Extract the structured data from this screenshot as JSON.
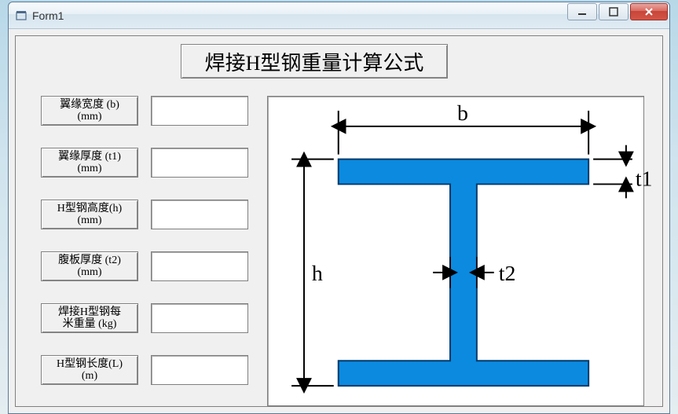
{
  "window": {
    "title": "Form1"
  },
  "page": {
    "title": "焊接H型钢重量计算公式"
  },
  "fields": [
    {
      "label_line1": "翼缘宽度 (b)",
      "label_line2": "(mm)",
      "value": ""
    },
    {
      "label_line1": "翼缘厚度 (t1)",
      "label_line2": "(mm)",
      "value": ""
    },
    {
      "label_line1": "H型钢高度(h)",
      "label_line2": "(mm)",
      "value": ""
    },
    {
      "label_line1": "腹板厚度 (t2)",
      "label_line2": "(mm)",
      "value": ""
    },
    {
      "label_line1": "焊接H型钢每",
      "label_line2": "米重量 (kg)",
      "value": ""
    },
    {
      "label_line1": "H型钢长度(L)",
      "label_line2": "(m)",
      "value": ""
    }
  ],
  "diagram": {
    "labels": {
      "b": "b",
      "h": "h",
      "t1": "t1",
      "t2": "t2"
    },
    "beam_color": "#0b8ae0",
    "beam_border": "#003a6a",
    "dim_line_color": "#000000",
    "flange_width": 320,
    "flange_thickness": 32,
    "web_thickness": 34,
    "total_height": 290
  }
}
